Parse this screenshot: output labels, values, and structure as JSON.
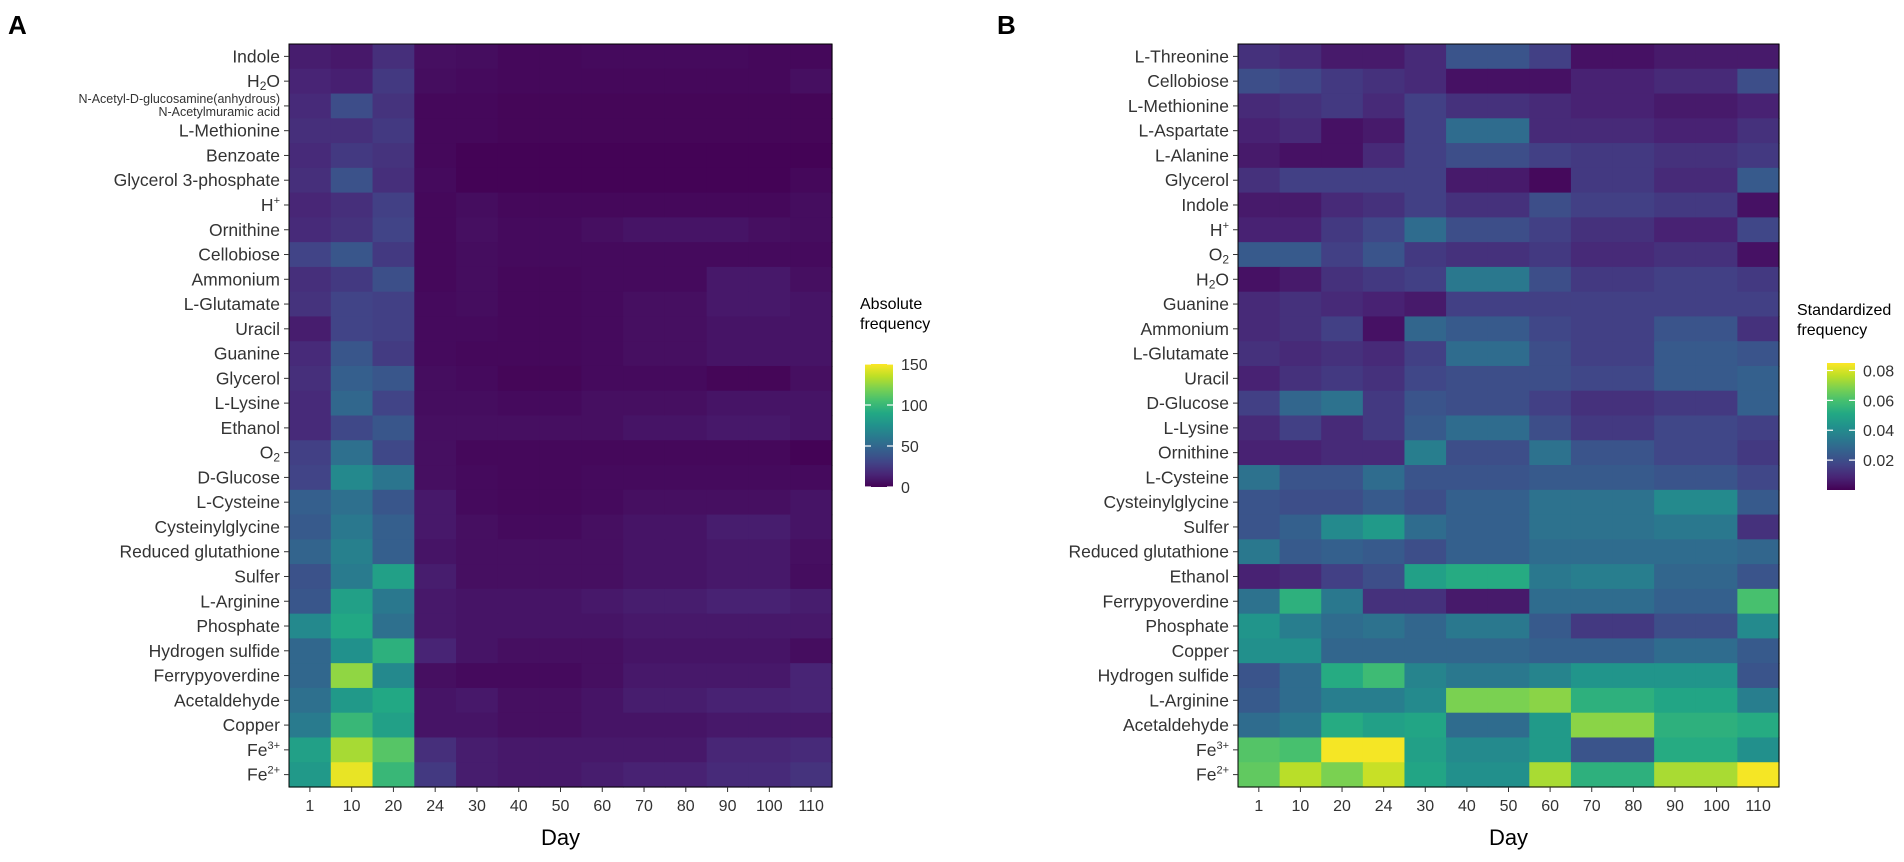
{
  "chart_data": [
    {
      "type": "heatmap",
      "panel_label": "A",
      "xlabel": "Day",
      "x": [
        "1",
        "10",
        "20",
        "24",
        "30",
        "40",
        "50",
        "60",
        "70",
        "80",
        "90",
        "100",
        "110"
      ],
      "rows": [
        "Indole",
        "H2O",
        "N-Acetyl-D-glucosamine(anhydrous) N-Acetylmuramic acid",
        "L-Methionine",
        "Benzoate",
        "Glycerol 3-phosphate",
        "H+",
        "Ornithine",
        "Cellobiose",
        "Ammonium",
        "L-Glutamate",
        "Uracil",
        "Guanine",
        "Glycerol",
        "L-Lysine",
        "Ethanol",
        "O2",
        "D-Glucose",
        "L-Cysteine",
        "Cysteinylglycine",
        "Reduced glutathione",
        "Sulfer",
        "L-Arginine",
        "Phosphate",
        "Hydrogen sulfide",
        "Ferrypyoverdine",
        "Acetaldehyde",
        "Copper",
        "Fe3+",
        "Fe2+"
      ],
      "row_labels": [
        {
          "main": "Indole",
          "sub": "",
          "sup": ""
        },
        {
          "main": "H",
          "sub": "2",
          "sup": "",
          "tail": "O"
        },
        {
          "main": "N-Acetyl-D-glucosamine(anhydrous)",
          "line2": "N-Acetylmuramic acid"
        },
        {
          "main": "L-Methionine"
        },
        {
          "main": "Benzoate"
        },
        {
          "main": "Glycerol 3-phosphate"
        },
        {
          "main": "H",
          "sup": "+"
        },
        {
          "main": "Ornithine"
        },
        {
          "main": "Cellobiose"
        },
        {
          "main": "Ammonium"
        },
        {
          "main": "L-Glutamate"
        },
        {
          "main": "Uracil"
        },
        {
          "main": "Guanine"
        },
        {
          "main": "Glycerol"
        },
        {
          "main": "L-Lysine"
        },
        {
          "main": "Ethanol"
        },
        {
          "main": "O",
          "sub": "2"
        },
        {
          "main": "D-Glucose"
        },
        {
          "main": "L-Cysteine"
        },
        {
          "main": "Cysteinylglycine"
        },
        {
          "main": "Reduced glutathione"
        },
        {
          "main": "Sulfer"
        },
        {
          "main": "L-Arginine"
        },
        {
          "main": "Phosphate"
        },
        {
          "main": "Hydrogen sulfide"
        },
        {
          "main": "Ferrypyoverdine"
        },
        {
          "main": "Acetaldehyde"
        },
        {
          "main": "Copper"
        },
        {
          "main": "Fe",
          "sup": "3+"
        },
        {
          "main": "Fe",
          "sup": "2+"
        }
      ],
      "values": [
        [
          12,
          10,
          20,
          6,
          5,
          3,
          3,
          4,
          4,
          4,
          4,
          3,
          3
        ],
        [
          15,
          13,
          25,
          5,
          4,
          3,
          3,
          3,
          3,
          3,
          3,
          3,
          6
        ],
        [
          18,
          35,
          22,
          3,
          3,
          2,
          2,
          2,
          2,
          2,
          2,
          2,
          2
        ],
        [
          20,
          20,
          25,
          3,
          3,
          2,
          2,
          2,
          2,
          2,
          2,
          2,
          2
        ],
        [
          18,
          25,
          22,
          3,
          1,
          1,
          1,
          1,
          1,
          1,
          1,
          1,
          1
        ],
        [
          20,
          38,
          20,
          4,
          1,
          1,
          1,
          1,
          1,
          1,
          1,
          1,
          3
        ],
        [
          16,
          20,
          28,
          3,
          5,
          3,
          3,
          3,
          3,
          3,
          3,
          3,
          5
        ],
        [
          18,
          22,
          30,
          3,
          6,
          4,
          4,
          6,
          8,
          8,
          8,
          6,
          5
        ],
        [
          30,
          40,
          25,
          3,
          5,
          4,
          4,
          4,
          4,
          4,
          4,
          4,
          4
        ],
        [
          20,
          25,
          36,
          3,
          5,
          3,
          3,
          4,
          4,
          4,
          10,
          10,
          6
        ],
        [
          22,
          30,
          28,
          4,
          5,
          3,
          3,
          4,
          6,
          6,
          10,
          10,
          8
        ],
        [
          12,
          30,
          28,
          4,
          4,
          3,
          3,
          4,
          6,
          6,
          8,
          8,
          8
        ],
        [
          18,
          40,
          26,
          4,
          3,
          3,
          3,
          4,
          6,
          6,
          8,
          8,
          8
        ],
        [
          20,
          45,
          40,
          5,
          4,
          2,
          2,
          4,
          4,
          4,
          2,
          2,
          6
        ],
        [
          18,
          50,
          30,
          5,
          5,
          4,
          4,
          6,
          6,
          6,
          8,
          8,
          8
        ],
        [
          18,
          32,
          40,
          6,
          6,
          6,
          6,
          6,
          8,
          8,
          10,
          10,
          8
        ],
        [
          28,
          55,
          32,
          6,
          3,
          3,
          3,
          3,
          3,
          3,
          3,
          3,
          1
        ],
        [
          30,
          70,
          58,
          6,
          4,
          3,
          3,
          4,
          4,
          4,
          4,
          4,
          4
        ],
        [
          45,
          55,
          40,
          10,
          4,
          3,
          3,
          4,
          6,
          6,
          6,
          6,
          8
        ],
        [
          42,
          60,
          45,
          10,
          6,
          4,
          4,
          6,
          8,
          8,
          12,
          12,
          8
        ],
        [
          48,
          65,
          45,
          8,
          6,
          6,
          6,
          6,
          8,
          8,
          10,
          10,
          6
        ],
        [
          38,
          62,
          85,
          12,
          6,
          6,
          6,
          6,
          8,
          8,
          10,
          10,
          5
        ],
        [
          40,
          85,
          60,
          10,
          8,
          8,
          8,
          10,
          12,
          12,
          14,
          14,
          12
        ],
        [
          70,
          90,
          55,
          10,
          8,
          8,
          8,
          8,
          10,
          10,
          10,
          10,
          10
        ],
        [
          50,
          75,
          95,
          15,
          8,
          6,
          6,
          6,
          8,
          8,
          8,
          8,
          5
        ],
        [
          50,
          125,
          70,
          6,
          4,
          4,
          4,
          6,
          10,
          10,
          10,
          10,
          15
        ],
        [
          55,
          80,
          90,
          8,
          10,
          6,
          6,
          8,
          12,
          12,
          14,
          14,
          15
        ],
        [
          62,
          100,
          85,
          8,
          8,
          6,
          6,
          8,
          8,
          8,
          10,
          10,
          10
        ],
        [
          85,
          130,
          110,
          20,
          12,
          10,
          10,
          10,
          10,
          10,
          16,
          16,
          18
        ],
        [
          80,
          145,
          100,
          25,
          12,
          10,
          10,
          12,
          14,
          14,
          18,
          18,
          22
        ]
      ],
      "legend": {
        "title": "Absolute frequency",
        "title_lines": [
          "Absolute",
          "frequency"
        ],
        "min": 0,
        "max": 150,
        "ticks": [
          0,
          50,
          100,
          150
        ],
        "tick_labels": [
          "0",
          "50",
          "100",
          "150"
        ]
      }
    },
    {
      "type": "heatmap",
      "panel_label": "B",
      "xlabel": "Day",
      "x": [
        "1",
        "10",
        "20",
        "24",
        "30",
        "40",
        "50",
        "60",
        "70",
        "80",
        "90",
        "100",
        "110"
      ],
      "rows": [
        "L-Threonine",
        "Cellobiose",
        "L-Methionine",
        "L-Aspartate",
        "L-Alanine",
        "Glycerol",
        "Indole",
        "H+",
        "O2",
        "H2O",
        "Guanine",
        "Ammonium",
        "L-Glutamate",
        "Uracil",
        "D-Glucose",
        "L-Lysine",
        "Ornithine",
        "L-Cysteine",
        "Cysteinylglycine",
        "Sulfer",
        "Reduced glutathione",
        "Ethanol",
        "Ferrypyoverdine",
        "Phosphate",
        "Copper",
        "Hydrogen sulfide",
        "L-Arginine",
        "Acetaldehyde",
        "Fe3+",
        "Fe2+"
      ],
      "row_labels": [
        {
          "main": "L-Threonine"
        },
        {
          "main": "Cellobiose"
        },
        {
          "main": "L-Methionine"
        },
        {
          "main": "L-Aspartate"
        },
        {
          "main": "L-Alanine"
        },
        {
          "main": "Glycerol"
        },
        {
          "main": "Indole"
        },
        {
          "main": "H",
          "sup": "+"
        },
        {
          "main": "O",
          "sub": "2"
        },
        {
          "main": "H",
          "sub": "2",
          "tail": "O"
        },
        {
          "main": "Guanine"
        },
        {
          "main": "Ammonium"
        },
        {
          "main": "L-Glutamate"
        },
        {
          "main": "Uracil"
        },
        {
          "main": "D-Glucose"
        },
        {
          "main": "L-Lysine"
        },
        {
          "main": "Ornithine"
        },
        {
          "main": "L-Cysteine"
        },
        {
          "main": "Cysteinylglycine"
        },
        {
          "main": "Sulfer"
        },
        {
          "main": "Reduced glutathione"
        },
        {
          "main": "Ethanol"
        },
        {
          "main": "Ferrypyoverdine"
        },
        {
          "main": "Phosphate"
        },
        {
          "main": "Copper"
        },
        {
          "main": "Hydrogen sulfide"
        },
        {
          "main": "L-Arginine"
        },
        {
          "main": "Acetaldehyde"
        },
        {
          "main": "Fe",
          "sup": "3+"
        },
        {
          "main": "Fe",
          "sup": "2+"
        }
      ],
      "values": [
        [
          0.012,
          0.01,
          0.006,
          0.006,
          0.01,
          0.022,
          0.022,
          0.016,
          0.004,
          0.004,
          0.006,
          0.006,
          0.006
        ],
        [
          0.02,
          0.018,
          0.014,
          0.012,
          0.01,
          0.004,
          0.004,
          0.004,
          0.008,
          0.008,
          0.01,
          0.01,
          0.02
        ],
        [
          0.01,
          0.012,
          0.014,
          0.01,
          0.016,
          0.012,
          0.012,
          0.01,
          0.008,
          0.008,
          0.006,
          0.006,
          0.008
        ],
        [
          0.008,
          0.01,
          0.004,
          0.006,
          0.016,
          0.03,
          0.03,
          0.01,
          0.01,
          0.01,
          0.008,
          0.008,
          0.012
        ],
        [
          0.006,
          0.004,
          0.004,
          0.01,
          0.016,
          0.02,
          0.02,
          0.016,
          0.014,
          0.014,
          0.012,
          0.012,
          0.014
        ],
        [
          0.012,
          0.016,
          0.016,
          0.016,
          0.016,
          0.006,
          0.006,
          0.002,
          0.014,
          0.014,
          0.01,
          0.01,
          0.024
        ],
        [
          0.006,
          0.006,
          0.01,
          0.012,
          0.016,
          0.012,
          0.012,
          0.02,
          0.016,
          0.016,
          0.014,
          0.014,
          0.004
        ],
        [
          0.008,
          0.008,
          0.014,
          0.018,
          0.03,
          0.02,
          0.02,
          0.016,
          0.012,
          0.012,
          0.008,
          0.008,
          0.018
        ],
        [
          0.024,
          0.024,
          0.016,
          0.022,
          0.014,
          0.012,
          0.012,
          0.014,
          0.01,
          0.01,
          0.012,
          0.012,
          0.004
        ],
        [
          0.004,
          0.006,
          0.012,
          0.014,
          0.016,
          0.034,
          0.034,
          0.02,
          0.014,
          0.014,
          0.016,
          0.016,
          0.014
        ],
        [
          0.01,
          0.012,
          0.01,
          0.008,
          0.006,
          0.016,
          0.016,
          0.016,
          0.016,
          0.016,
          0.016,
          0.016,
          0.016
        ],
        [
          0.01,
          0.012,
          0.016,
          0.004,
          0.028,
          0.024,
          0.024,
          0.018,
          0.016,
          0.016,
          0.022,
          0.022,
          0.012
        ],
        [
          0.012,
          0.01,
          0.012,
          0.01,
          0.016,
          0.03,
          0.03,
          0.02,
          0.016,
          0.016,
          0.024,
          0.024,
          0.022
        ],
        [
          0.008,
          0.012,
          0.014,
          0.012,
          0.018,
          0.02,
          0.02,
          0.02,
          0.018,
          0.018,
          0.024,
          0.024,
          0.026
        ],
        [
          0.016,
          0.028,
          0.032,
          0.014,
          0.022,
          0.02,
          0.02,
          0.016,
          0.012,
          0.012,
          0.014,
          0.014,
          0.026
        ],
        [
          0.01,
          0.016,
          0.01,
          0.014,
          0.024,
          0.03,
          0.03,
          0.02,
          0.014,
          0.014,
          0.018,
          0.018,
          0.016
        ],
        [
          0.008,
          0.008,
          0.01,
          0.01,
          0.036,
          0.02,
          0.02,
          0.032,
          0.022,
          0.022,
          0.018,
          0.018,
          0.014
        ],
        [
          0.032,
          0.022,
          0.022,
          0.03,
          0.022,
          0.022,
          0.022,
          0.024,
          0.024,
          0.024,
          0.022,
          0.022,
          0.018
        ],
        [
          0.022,
          0.02,
          0.02,
          0.024,
          0.02,
          0.026,
          0.026,
          0.032,
          0.032,
          0.032,
          0.04,
          0.04,
          0.024
        ],
        [
          0.022,
          0.026,
          0.04,
          0.046,
          0.03,
          0.026,
          0.026,
          0.032,
          0.032,
          0.032,
          0.034,
          0.034,
          0.012
        ],
        [
          0.034,
          0.024,
          0.026,
          0.024,
          0.02,
          0.026,
          0.026,
          0.03,
          0.03,
          0.03,
          0.03,
          0.03,
          0.028
        ],
        [
          0.008,
          0.01,
          0.016,
          0.02,
          0.048,
          0.052,
          0.052,
          0.034,
          0.036,
          0.036,
          0.028,
          0.028,
          0.022
        ],
        [
          0.032,
          0.054,
          0.034,
          0.012,
          0.012,
          0.006,
          0.006,
          0.03,
          0.03,
          0.03,
          0.026,
          0.026,
          0.06
        ],
        [
          0.044,
          0.036,
          0.03,
          0.032,
          0.028,
          0.034,
          0.034,
          0.024,
          0.014,
          0.014,
          0.02,
          0.02,
          0.04
        ],
        [
          0.042,
          0.042,
          0.028,
          0.028,
          0.028,
          0.028,
          0.028,
          0.026,
          0.026,
          0.026,
          0.03,
          0.03,
          0.024
        ],
        [
          0.022,
          0.03,
          0.052,
          0.058,
          0.038,
          0.034,
          0.034,
          0.038,
          0.044,
          0.044,
          0.044,
          0.044,
          0.022
        ],
        [
          0.024,
          0.03,
          0.036,
          0.036,
          0.04,
          0.068,
          0.068,
          0.07,
          0.054,
          0.054,
          0.05,
          0.05,
          0.036
        ],
        [
          0.03,
          0.034,
          0.052,
          0.048,
          0.05,
          0.03,
          0.03,
          0.046,
          0.07,
          0.07,
          0.054,
          0.054,
          0.052
        ],
        [
          0.062,
          0.06,
          0.084,
          0.084,
          0.048,
          0.04,
          0.04,
          0.046,
          0.022,
          0.022,
          0.052,
          0.052,
          0.042
        ],
        [
          0.064,
          0.076,
          0.068,
          0.078,
          0.05,
          0.042,
          0.042,
          0.074,
          0.054,
          0.054,
          0.074,
          0.074,
          0.084
        ]
      ],
      "legend": {
        "title": "Standardized frequency",
        "title_lines": [
          "Standardized",
          "frequency"
        ],
        "min": 0,
        "max": 0.085,
        "ticks": [
          0.02,
          0.04,
          0.06,
          0.08
        ],
        "tick_labels": [
          "0.02",
          "0.04",
          "0.06",
          "0.08"
        ]
      }
    }
  ]
}
